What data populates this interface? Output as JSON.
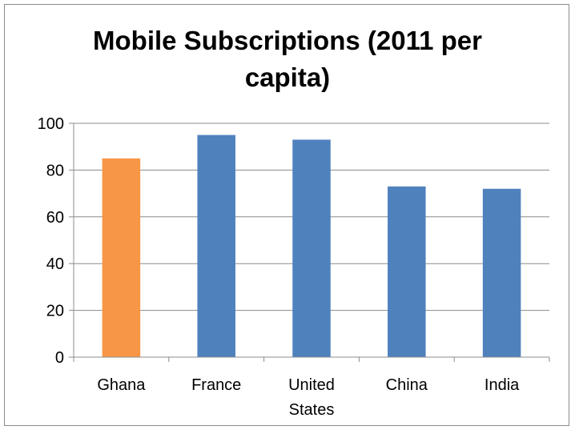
{
  "chart_data": {
    "type": "bar",
    "title_lines": [
      "Mobile Subscriptions (2011 per",
      "capita)"
    ],
    "categories": [
      [
        "Ghana"
      ],
      [
        "France"
      ],
      [
        "United",
        "States"
      ],
      [
        "China"
      ],
      [
        "India"
      ]
    ],
    "values": [
      85,
      95,
      93,
      73,
      72
    ],
    "bar_colors": [
      "#f79646",
      "#4f81bd",
      "#4f81bd",
      "#4f81bd",
      "#4f81bd"
    ],
    "ylim": [
      0,
      100
    ],
    "yticks": [
      0,
      20,
      40,
      60,
      80,
      100
    ],
    "grid": true,
    "legend": "none",
    "xlabel": "",
    "ylabel": ""
  }
}
